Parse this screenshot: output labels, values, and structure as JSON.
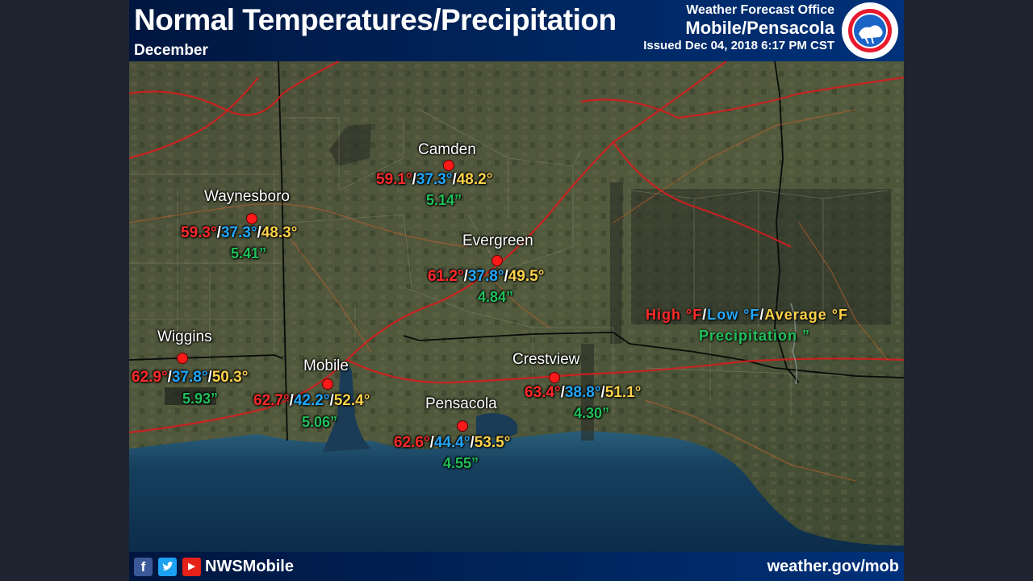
{
  "header": {
    "title": "Normal Temperatures/Precipitation",
    "subtitle": "December",
    "office_line1": "Weather Forecast Office",
    "office_line2": "Mobile/Pensacola",
    "issued": "Issued Dec 04, 2018 6:17 PM CST"
  },
  "legend": {
    "high": "High °F",
    "low": "Low °F",
    "average": "Average °F",
    "sep": "/",
    "precip": "Precipitation ”"
  },
  "stations": [
    {
      "name": "Camden",
      "high": "59.1°",
      "low": "37.3°",
      "avg": "48.2°",
      "precip": "5.14”"
    },
    {
      "name": "Waynesboro",
      "high": "59.3°",
      "low": "37.3°",
      "avg": "48.3°",
      "precip": "5.41”"
    },
    {
      "name": "Evergreen",
      "high": "61.2°",
      "low": "37.8°",
      "avg": "49.5°",
      "precip": "4.84”"
    },
    {
      "name": "Wiggins",
      "high": "62.9°",
      "low": "37.8°",
      "avg": "50.3°",
      "precip": "5.93”"
    },
    {
      "name": "Mobile",
      "high": "62.7°",
      "low": "42.2°",
      "avg": "52.4°",
      "precip": "5.06”"
    },
    {
      "name": "Crestview",
      "high": "63.4°",
      "low": "38.8°",
      "avg": "51.1°",
      "precip": "4.30”"
    },
    {
      "name": "Pensacola",
      "high": "62.6°",
      "low": "44.4°",
      "avg": "53.5°",
      "precip": "4.55”"
    }
  ],
  "footer": {
    "handle": "NWSMobile",
    "url": "weather.gov/mob",
    "icons": [
      "facebook-icon",
      "twitter-icon",
      "youtube-icon"
    ]
  },
  "colors": {
    "high": "#ff2a2a",
    "low": "#22a8ff",
    "average": "#ffd24a",
    "precip": "#21c15a",
    "header_bg": "#00265f"
  }
}
